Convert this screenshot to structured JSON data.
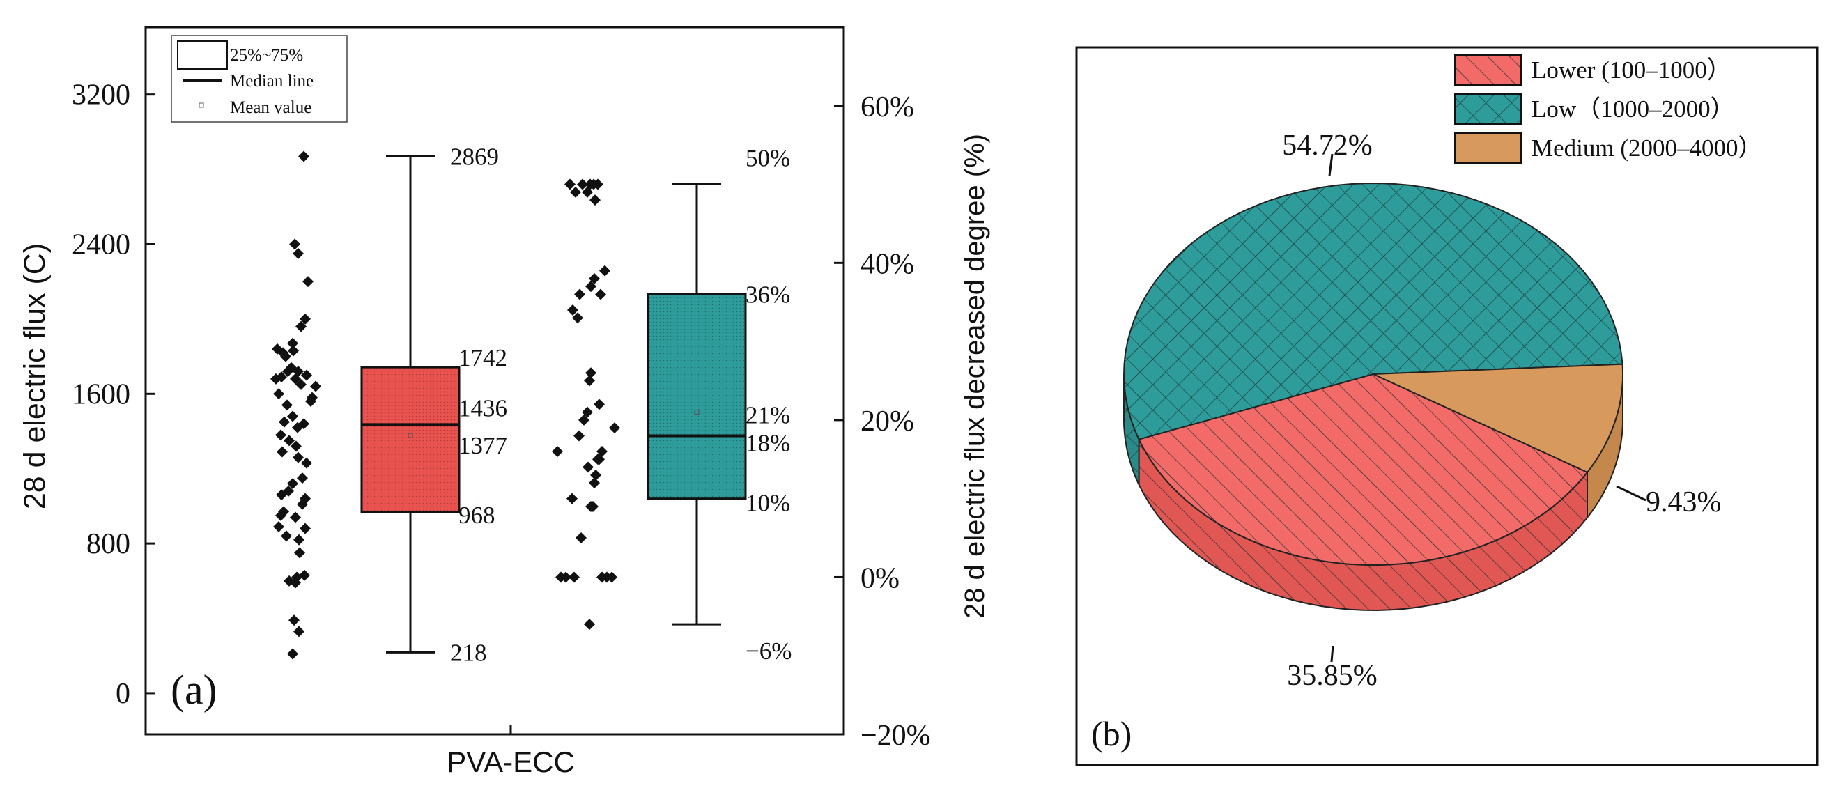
{
  "chart_data": [
    {
      "type": "box",
      "panel_label": "(a)",
      "xlabel": "PVA-ECC",
      "ylabel": "28 d electric flux (C)",
      "y2label": "28 d electric flux decreased degree (%)",
      "ylim": [
        -220,
        3560
      ],
      "yticks": [
        "0",
        "800",
        "1600",
        "2400",
        "3200"
      ],
      "ytick_values": [
        0,
        800,
        1600,
        2400,
        3200
      ],
      "y2lim": [
        -20,
        70
      ],
      "y2ticks": [
        "−20%",
        "0%",
        "20%",
        "40%",
        "60%"
      ],
      "y2tick_values": [
        -20,
        0,
        20,
        40,
        60
      ],
      "legend": {
        "position": "top-left",
        "entries": [
          "25%~75%",
          "Median line",
          "Mean value"
        ]
      },
      "boxes": [
        {
          "name": "electric flux",
          "axis": "left",
          "color": "#e8524f",
          "whisker_low": 218,
          "q1": 968,
          "median": 1436,
          "mean": 1377,
          "q3": 1742,
          "whisker_high": 2869,
          "labels": {
            "whisker_high": "2869",
            "q3": "1742",
            "median": "1436",
            "mean": "1377",
            "q1": "968",
            "whisker_low": "218"
          }
        },
        {
          "name": "decreased degree",
          "axis": "right",
          "color": "#2e9c9a",
          "whisker_low": -6,
          "q1": 10,
          "median": 18,
          "mean": 21,
          "q3": 36,
          "whisker_high": 50,
          "labels": {
            "whisker_high": "50%",
            "q3": "36%",
            "mean": "21%",
            "median": "18%",
            "q1": "10%",
            "whisker_low": "−6%"
          }
        }
      ],
      "points_left": [
        [
          0.18,
          2869
        ],
        [
          0.05,
          2400
        ],
        [
          0.1,
          2350
        ],
        [
          0.24,
          2200
        ],
        [
          0.2,
          2000
        ],
        [
          0.14,
          1960
        ],
        [
          0.02,
          1870
        ],
        [
          0.03,
          1830
        ],
        [
          -0.2,
          1840
        ],
        [
          -0.12,
          1820
        ],
        [
          -0.08,
          1800
        ],
        [
          0.1,
          1720
        ],
        [
          0.22,
          1700
        ],
        [
          0.0,
          1740
        ],
        [
          -0.05,
          1720
        ],
        [
          -0.14,
          1690
        ],
        [
          -0.22,
          1680
        ],
        [
          0.06,
          1680
        ],
        [
          0.14,
          1650
        ],
        [
          0.35,
          1640
        ],
        [
          0.3,
          1580
        ],
        [
          0.28,
          1560
        ],
        [
          -0.18,
          1600
        ],
        [
          -0.06,
          1540
        ],
        [
          0.18,
          1440
        ],
        [
          0.02,
          1480
        ],
        [
          -0.1,
          1450
        ],
        [
          0.09,
          1420
        ],
        [
          -0.15,
          1380
        ],
        [
          -0.03,
          1350
        ],
        [
          0.07,
          1320
        ],
        [
          -0.13,
          1290
        ],
        [
          0.1,
          1260
        ],
        [
          0.22,
          1230
        ],
        [
          0.16,
          1150
        ],
        [
          0.02,
          1120
        ],
        [
          -0.04,
          1080
        ],
        [
          -0.14,
          1060
        ],
        [
          0.2,
          1040
        ],
        [
          0.16,
          1010
        ],
        [
          -0.11,
          970
        ],
        [
          -0.15,
          950
        ],
        [
          0.06,
          940
        ],
        [
          -0.18,
          890
        ],
        [
          0.2,
          880
        ],
        [
          -0.07,
          840
        ],
        [
          0.11,
          820
        ],
        [
          0.12,
          750
        ],
        [
          0.19,
          630
        ],
        [
          0.08,
          620
        ],
        [
          -0.03,
          600
        ],
        [
          0.06,
          590
        ],
        [
          0.04,
          390
        ],
        [
          0.11,
          330
        ],
        [
          0.02,
          210
        ]
      ],
      "points_right": [
        [
          -0.2,
          50
        ],
        [
          -0.02,
          50
        ],
        [
          0.09,
          50
        ],
        [
          0.14,
          50
        ],
        [
          0.2,
          50
        ],
        [
          -0.12,
          49
        ],
        [
          0.05,
          49
        ],
        [
          0.16,
          48
        ],
        [
          0.3,
          39
        ],
        [
          0.15,
          38
        ],
        [
          0.1,
          37
        ],
        [
          -0.06,
          36
        ],
        [
          0.24,
          36
        ],
        [
          -0.16,
          34
        ],
        [
          -0.09,
          33
        ],
        [
          0.1,
          26
        ],
        [
          0.08,
          25
        ],
        [
          0.22,
          22
        ],
        [
          0.05,
          21
        ],
        [
          0.44,
          19
        ],
        [
          0.0,
          20
        ],
        [
          -0.07,
          18
        ],
        [
          0.26,
          16
        ],
        [
          0.2,
          15
        ],
        [
          0.22,
          15
        ],
        [
          -0.38,
          16
        ],
        [
          0.06,
          14
        ],
        [
          0.17,
          13
        ],
        [
          0.15,
          12
        ],
        [
          -0.17,
          10
        ],
        [
          0.13,
          9
        ],
        [
          0.1,
          9
        ],
        [
          -0.04,
          5
        ],
        [
          -0.33,
          0
        ],
        [
          -0.26,
          0
        ],
        [
          -0.14,
          0
        ],
        [
          0.26,
          0
        ],
        [
          0.33,
          0
        ],
        [
          0.4,
          0
        ],
        [
          0.08,
          -6
        ]
      ]
    },
    {
      "type": "pie",
      "style": "3d",
      "panel_label": "(b)",
      "legend": {
        "position": "top-right",
        "entries": [
          "Lower (100–1000）",
          "Low（1000–2000）",
          "Medium (2000–4000）"
        ]
      },
      "slices": [
        {
          "name": "Lower (100–1000）",
          "value": 35.85,
          "label": "35.85%",
          "color": "#f26b68",
          "hatch": "diagonal"
        },
        {
          "name": "Low（1000–2000）",
          "value": 54.72,
          "label": "54.72%",
          "color": "#2e9c9a",
          "hatch": "crosshatch"
        },
        {
          "name": "Medium (2000–4000）",
          "value": 9.43,
          "label": "9.43%",
          "color": "#d89a5c",
          "hatch": "none"
        }
      ]
    }
  ]
}
